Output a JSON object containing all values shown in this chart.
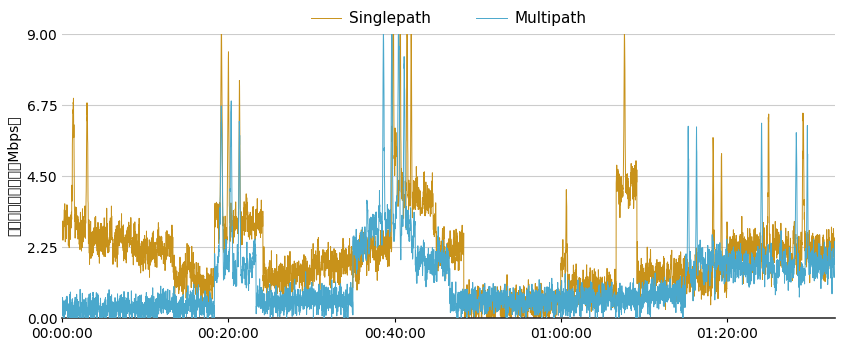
{
  "ylabel": "受信スループット［Mbps］",
  "ylim": [
    0.0,
    9.0
  ],
  "yticks": [
    0.0,
    2.25,
    4.5,
    6.75,
    9.0
  ],
  "xtick_labels": [
    "00:00:00",
    "00:20:00",
    "00:40:00",
    "01:00:00",
    "01:20:00"
  ],
  "xtick_positions": [
    0,
    1200,
    2400,
    3600,
    4800
  ],
  "xlim": [
    0,
    5580
  ],
  "multipath_color": "#4aa8cc",
  "singlepath_color": "#c8921a",
  "legend_labels": [
    "Multipath",
    "Singlepath"
  ],
  "background_color": "#ffffff",
  "grid_color": "#cccccc",
  "linewidth": 0.7,
  "total_seconds": 5580,
  "seed": 7
}
